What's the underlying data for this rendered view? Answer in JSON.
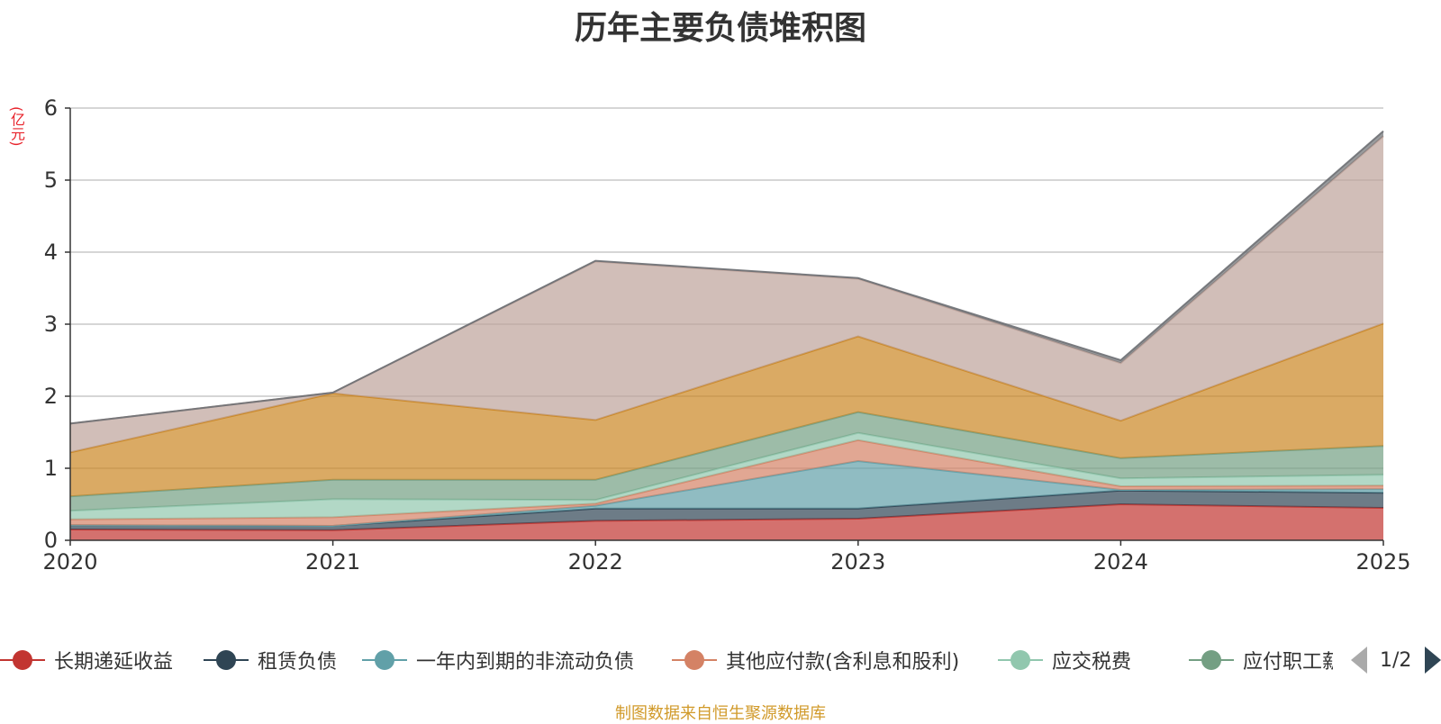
{
  "chart_data": {
    "type": "area",
    "title": "历年主要负债堆积图",
    "ylabel": "(亿元)",
    "source_note": "制图数据来自恒生聚源数据库",
    "categories": [
      "2020",
      "2021",
      "2022",
      "2023",
      "2024",
      "2025"
    ],
    "ylim": [
      0,
      6
    ],
    "yticks": [
      0,
      1,
      2,
      3,
      4,
      5,
      6
    ],
    "grid": true,
    "stacked": true,
    "legend_position": "bottom",
    "legend_page": "1/2",
    "series": [
      {
        "name": "长期递延收益",
        "color": "#c23531",
        "values": [
          0.15,
          0.14,
          0.27,
          0.3,
          0.5,
          0.45
        ]
      },
      {
        "name": "租赁负债",
        "color": "#2f4554",
        "values": [
          0.06,
          0.06,
          0.17,
          0.14,
          0.19,
          0.21
        ]
      },
      {
        "name": "一年内到期的非流动负债",
        "color": "#61a0a8",
        "values": [
          0.0,
          0.0,
          0.04,
          0.66,
          0.01,
          0.05
        ]
      },
      {
        "name": "其他应付款(含利息和股利)",
        "color": "#d48265",
        "values": [
          0.08,
          0.12,
          0.03,
          0.29,
          0.05,
          0.05
        ]
      },
      {
        "name": "应交税费",
        "color": "#91c7ae",
        "values": [
          0.12,
          0.25,
          0.05,
          0.1,
          0.11,
          0.15
        ]
      },
      {
        "name": "应付职工薪酬",
        "color": "#749f83",
        "values": [
          0.2,
          0.27,
          0.28,
          0.29,
          0.28,
          0.4
        ]
      },
      {
        "name": "",
        "color": "#ca8622",
        "values": [
          0.61,
          1.2,
          0.83,
          1.05,
          0.52,
          1.7
        ]
      },
      {
        "name": "",
        "color": "#bda29a",
        "values": [
          0.4,
          0.01,
          2.2,
          0.8,
          0.8,
          2.6
        ]
      },
      {
        "name": "",
        "color": "#6e7074",
        "values": [
          0.0,
          0.0,
          0.01,
          0.01,
          0.04,
          0.07
        ]
      }
    ]
  }
}
